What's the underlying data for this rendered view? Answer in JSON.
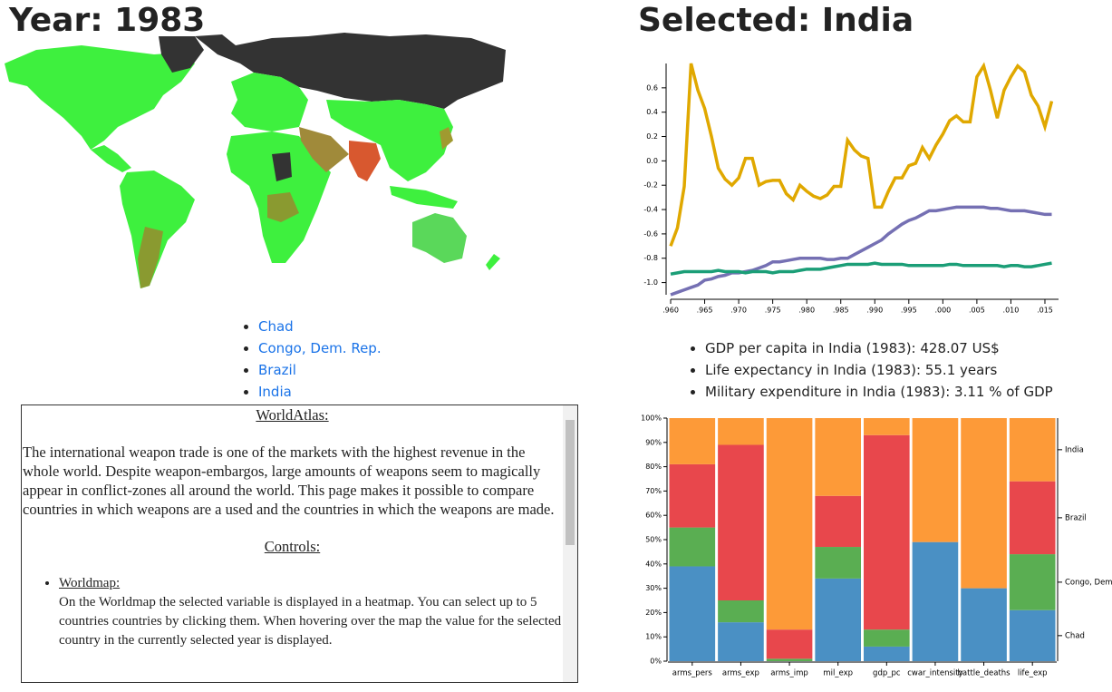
{
  "map_title": "Year: 1983",
  "selected_title": "Selected: India",
  "selected_countries": [
    "Chad",
    "Congo, Dem. Rep.",
    "Brazil",
    "India"
  ],
  "info": [
    "GDP per capita in India (1983): 428.07 US$",
    "Life expectancy in India (1983): 55.1 years",
    "Military expenditure in India (1983): 3.11 % of GDP"
  ],
  "text_box": {
    "heading": "WorldAtlas:",
    "intro": "The international weapon trade is one of the markets with the highest revenue in the whole world. Despite weapon-embargos, large amounts of weapons seem to magically appear in conflict-zones all around the world. This page makes it possible to compare countries in which weapons are a used and the countries in which the weapons are made.",
    "controls_heading": "Controls:",
    "items": [
      {
        "title": "Worldmap:",
        "text": "On the Worldmap the selected variable is displayed in a heatmap. You can select up to 5 countries countries by clicking them. When hovering over the map the value for the selected country in the currently selected year is displayed."
      }
    ]
  },
  "chart_data": [
    {
      "type": "line",
      "x": [
        1960,
        1961,
        1962,
        1963,
        1964,
        1965,
        1966,
        1967,
        1968,
        1969,
        1970,
        1971,
        1972,
        1973,
        1974,
        1975,
        1976,
        1977,
        1978,
        1979,
        1980,
        1981,
        1982,
        1983,
        1984,
        1985,
        1986,
        1987,
        1988,
        1989,
        1990,
        1991,
        1992,
        1993,
        1994,
        1995,
        1996,
        1997,
        1998,
        1999,
        2000,
        2001,
        2002,
        2003,
        2004,
        2005,
        2006,
        2007,
        2008,
        2009,
        2010,
        2011,
        2012,
        2013,
        2014,
        2015,
        2016
      ],
      "series": [
        {
          "color": "#e0a800",
          "values": [
            -0.7,
            -0.55,
            -0.21,
            0.8,
            0.58,
            0.43,
            0.2,
            -0.06,
            -0.15,
            -0.2,
            -0.14,
            0.02,
            0.02,
            -0.2,
            -0.17,
            -0.16,
            -0.16,
            -0.27,
            -0.32,
            -0.2,
            -0.25,
            -0.29,
            -0.31,
            -0.28,
            -0.21,
            -0.21,
            0.17,
            0.09,
            0.04,
            0.02,
            -0.38,
            -0.38,
            -0.25,
            -0.14,
            -0.14,
            -0.04,
            -0.02,
            0.11,
            0.02,
            0.13,
            0.22,
            0.33,
            0.37,
            0.32,
            0.32,
            0.69,
            0.78,
            0.58,
            0.35,
            0.58,
            0.69,
            0.78,
            0.73,
            0.54,
            0.45,
            0.28,
            0.49
          ]
        },
        {
          "color": "#7570b3",
          "values": [
            -1.1,
            -1.08,
            -1.06,
            -1.04,
            -1.02,
            -0.98,
            -0.97,
            -0.95,
            -0.94,
            -0.92,
            -0.92,
            -0.91,
            -0.9,
            -0.88,
            -0.86,
            -0.83,
            -0.83,
            -0.82,
            -0.81,
            -0.8,
            -0.8,
            -0.8,
            -0.8,
            -0.81,
            -0.81,
            -0.8,
            -0.8,
            -0.77,
            -0.74,
            -0.71,
            -0.68,
            -0.65,
            -0.6,
            -0.56,
            -0.52,
            -0.49,
            -0.47,
            -0.44,
            -0.41,
            -0.41,
            -0.4,
            -0.39,
            -0.38,
            -0.38,
            -0.38,
            -0.38,
            -0.38,
            -0.39,
            -0.39,
            -0.4,
            -0.41,
            -0.41,
            -0.41,
            -0.42,
            -0.43,
            -0.44,
            -0.44
          ]
        },
        {
          "color": "#1b9e77",
          "values": [
            -0.93,
            -0.92,
            -0.91,
            -0.91,
            -0.91,
            -0.91,
            -0.91,
            -0.9,
            -0.91,
            -0.91,
            -0.91,
            -0.92,
            -0.91,
            -0.91,
            -0.91,
            -0.92,
            -0.91,
            -0.91,
            -0.91,
            -0.9,
            -0.89,
            -0.89,
            -0.89,
            -0.88,
            -0.87,
            -0.86,
            -0.85,
            -0.85,
            -0.85,
            -0.85,
            -0.84,
            -0.85,
            -0.85,
            -0.85,
            -0.85,
            -0.86,
            -0.86,
            -0.86,
            -0.86,
            -0.86,
            -0.86,
            -0.85,
            -0.85,
            -0.86,
            -0.86,
            -0.86,
            -0.86,
            -0.86,
            -0.86,
            -0.87,
            -0.86,
            -0.86,
            -0.87,
            -0.87,
            -0.86,
            -0.85,
            -0.84
          ]
        }
      ],
      "xlim": [
        1960,
        2017
      ],
      "ylim": [
        -1.1,
        0.8
      ],
      "xticks": [
        {
          "value": 1960,
          "label": ".960"
        },
        {
          "value": 1965,
          "label": ".965"
        },
        {
          "value": 1970,
          "label": ".970"
        },
        {
          "value": 1975,
          "label": ".975"
        },
        {
          "value": 1980,
          "label": ".980"
        },
        {
          "value": 1985,
          "label": ".985"
        },
        {
          "value": 1990,
          "label": ".990"
        },
        {
          "value": 1995,
          "label": ".995"
        },
        {
          "value": 2000,
          "label": ".000"
        },
        {
          "value": 2005,
          "label": ".005"
        },
        {
          "value": 2010,
          "label": ".010"
        },
        {
          "value": 2015,
          "label": ".015"
        }
      ],
      "yticks": [
        {
          "value": -1,
          "label": "-1.0"
        },
        -0.8,
        -0.6,
        -0.4,
        -0.2,
        {
          "value": 0,
          "label": "0.0"
        },
        0.2,
        0.4,
        0.6
      ]
    },
    {
      "type": "stacked-bar",
      "categories": [
        "arms_pers",
        "arms_exp",
        "arms_imp",
        "mil_exp",
        "gdp_pc",
        "cwar_intensity",
        "battle_deaths",
        "life_exp"
      ],
      "series": [
        {
          "name": "Chad",
          "color": "#4a90c4",
          "values": [
            39,
            16,
            0,
            34,
            6,
            49,
            30,
            21
          ]
        },
        {
          "name": "Congo, Dem. Rep.",
          "color": "#5aae52",
          "values": [
            16,
            9,
            1,
            13,
            7,
            0,
            0,
            23
          ]
        },
        {
          "name": "Brazil",
          "color": "#e8474c",
          "values": [
            26,
            64,
            12,
            21,
            80,
            0,
            0,
            30
          ]
        },
        {
          "name": "India",
          "color": "#fd9a38",
          "values": [
            19,
            11,
            87,
            32,
            7,
            51,
            70,
            26
          ]
        }
      ],
      "ylim": [
        0,
        100
      ],
      "yticks": [
        {
          "value": 0,
          "label": "0%"
        },
        {
          "value": 10,
          "label": "10%"
        },
        {
          "value": 20,
          "label": "20%"
        },
        {
          "value": 30,
          "label": "30%"
        },
        {
          "value": 40,
          "label": "40%"
        },
        {
          "value": 50,
          "label": "50%"
        },
        {
          "value": 60,
          "label": "60%"
        },
        {
          "value": 70,
          "label": "70%"
        },
        {
          "value": 80,
          "label": "80%"
        },
        {
          "value": 90,
          "label": "90%"
        },
        {
          "value": 100,
          "label": "100%"
        }
      ]
    }
  ]
}
